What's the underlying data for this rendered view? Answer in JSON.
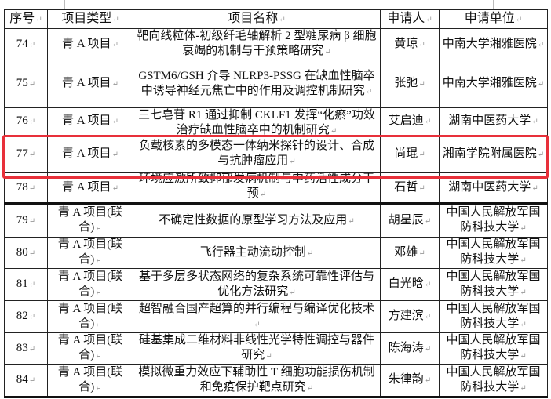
{
  "table": {
    "headers": [
      "序号",
      "项目类型",
      "项目名称",
      "申请人",
      "申请单位"
    ],
    "rows": [
      {
        "no": "74",
        "type": "青 A 项目",
        "name": "靶向线粒体-初级纤毛轴解析 2 型糖尿病 β 细胞衰竭的机制与干预策略研究",
        "applicant": "黄琼",
        "unit": "中南大学湘雅医院"
      },
      {
        "no": "75",
        "type": "青 A 项目",
        "name": "GSTM6/GSH 介导 NLRP3-PSSG 在缺血性脑卒中诱导神经元焦亡中的作用及调控机制研究",
        "applicant": "张弛",
        "unit": "中南大学湘雅医院"
      },
      {
        "no": "76",
        "type": "青 A 项目",
        "name": "三七皂苷 R1 通过抑制 CKLF1 发挥“化瘀”功效治疗缺血性脑卒中的机制研究",
        "applicant": "艾启迪",
        "unit": "湖南中医药大学"
      },
      {
        "no": "77",
        "type": "青 A 项目",
        "name": "负载核素的多模态一体纳米探针的设计、合成与抗肿瘤应用",
        "applicant": "尚琨",
        "unit": "湘南学院附属医院"
      },
      {
        "no": "78",
        "type": "青 A 项目",
        "name": "环境应激所致抑郁发病机制与中药活性成分干预",
        "applicant": "石哲",
        "unit": "湖南中医药大学"
      },
      {
        "no": "79",
        "type": "青 A 项目(联合)",
        "name": "不确定性数据的原型学习方法及应用",
        "applicant": "胡星辰",
        "unit": "中国人民解放军国防科技大学"
      },
      {
        "no": "80",
        "type": "青 A 项目(联合)",
        "name": "飞行器主动流动控制",
        "applicant": "邓雄",
        "unit": "中国人民解放军国防科技大学"
      },
      {
        "no": "81",
        "type": "青 A 项目(联合)",
        "name": "基于多层多状态网络的复杂系统可靠性评估与优化方法研究",
        "applicant": "白光晗",
        "unit": "中国人民解放军国防科技大学"
      },
      {
        "no": "82",
        "type": "青 A 项目(联合)",
        "name": "超智融合国产超算的并行编程与编译优化技术",
        "applicant": "方建滨",
        "unit": "中国人民解放军国防科技大学"
      },
      {
        "no": "83",
        "type": "青 A 项目(联合)",
        "name": "硅基集成二维材料非线性光学特性调控与器件研究",
        "applicant": "陈海涛",
        "unit": "中国人民解放军国防科技大学"
      },
      {
        "no": "84",
        "type": "青 A 项目(联合)",
        "name": "模拟微重力效应下辅助性 T 细胞功能损伤机制和免疫保护靶点研究",
        "applicant": "朱律韵",
        "unit": "中国人民解放军国防科技大学"
      }
    ]
  },
  "highlight_color": "#e8303a"
}
